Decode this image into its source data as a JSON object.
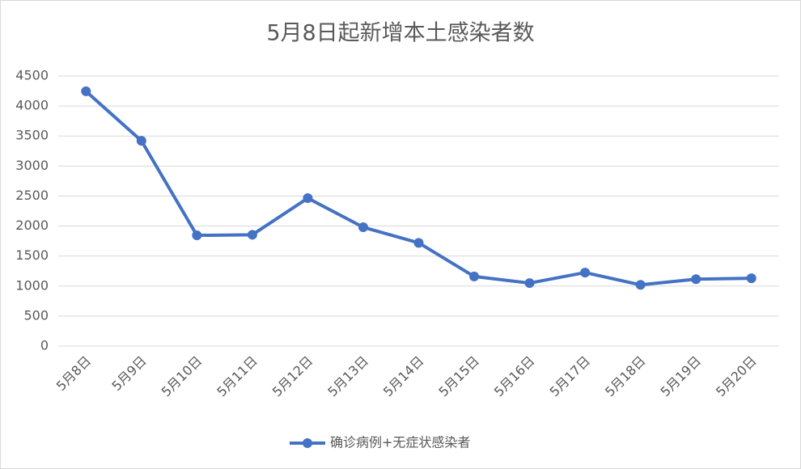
{
  "chart_data": {
    "type": "line",
    "title": "5月8日起新增本土感染者数",
    "categories": [
      "5月8日",
      "5月9日",
      "5月10日",
      "5月11日",
      "5月12日",
      "5月13日",
      "5月14日",
      "5月15日",
      "5月16日",
      "5月17日",
      "5月18日",
      "5月19日",
      "5月20日"
    ],
    "series": [
      {
        "name": "确诊病例+无症状感染者",
        "color": "#4472c4",
        "values": [
          4245,
          3420,
          1845,
          1855,
          2465,
          1980,
          1720,
          1160,
          1050,
          1225,
          1020,
          1115,
          1130
        ]
      }
    ],
    "ylim": [
      0,
      4500
    ],
    "yticks": [
      0,
      500,
      1000,
      1500,
      2000,
      2500,
      3000,
      3500,
      4000,
      4500
    ],
    "grid": true,
    "legend": "bottom"
  }
}
